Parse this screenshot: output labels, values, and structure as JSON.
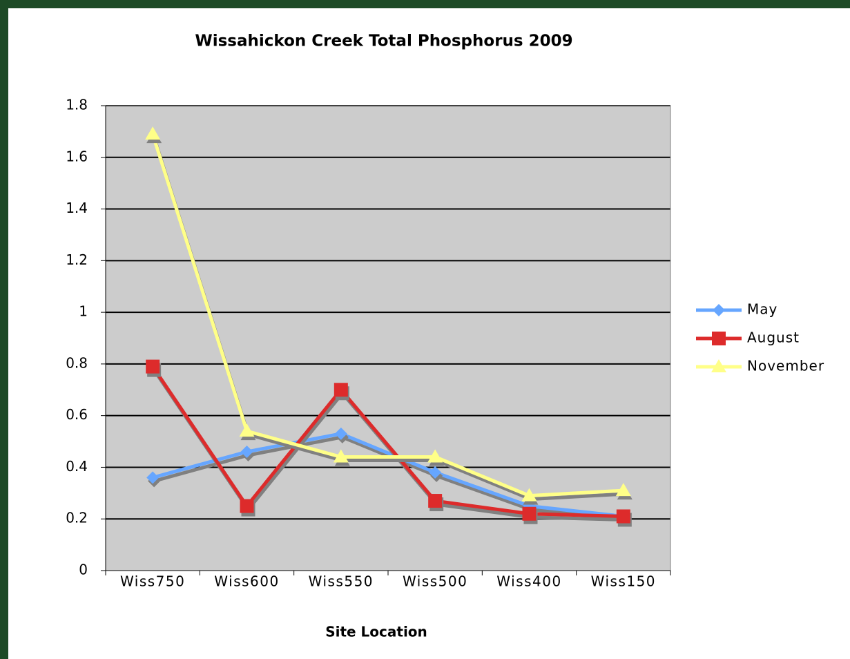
{
  "chart_data": {
    "type": "line",
    "title": "Wissahickon Creek Total Phosphorus 2009",
    "x_label": "Site Location",
    "categories": [
      "Wiss750",
      "Wiss600",
      "Wiss550",
      "Wiss500",
      "Wiss400",
      "Wiss150"
    ],
    "series": [
      {
        "name": "May",
        "color": "#66a6ff",
        "marker": "diamond",
        "values": [
          0.36,
          0.46,
          0.53,
          0.38,
          0.25,
          0.21
        ]
      },
      {
        "name": "August",
        "color": "#dd2b2b",
        "marker": "square",
        "values": [
          0.79,
          0.25,
          0.7,
          0.27,
          0.22,
          0.21
        ]
      },
      {
        "name": "November",
        "color": "#ffff88",
        "marker": "triangle",
        "values": [
          1.69,
          0.54,
          0.44,
          0.44,
          0.29,
          0.31
        ]
      }
    ],
    "ylim": [
      0,
      1.8
    ],
    "yticks": [
      0,
      0.2,
      0.4,
      0.6,
      0.8,
      1,
      1.2,
      1.4,
      1.6,
      1.8
    ],
    "grid": true,
    "legend": "right"
  }
}
